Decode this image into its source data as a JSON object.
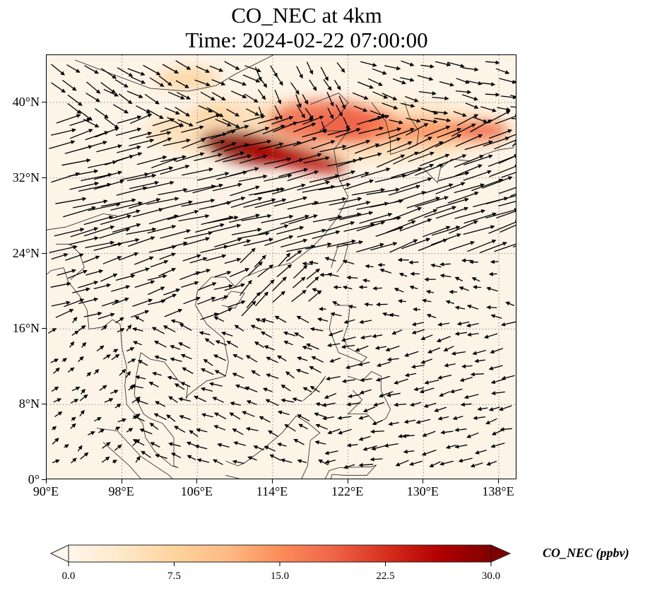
{
  "title": {
    "line1": "CO_NEC at 4km",
    "line2": "Time: 2024-02-22 07:00:00"
  },
  "map": {
    "projection": "PlateCarree",
    "lon_range": [
      90,
      140
    ],
    "lat_range": [
      0,
      45
    ],
    "gridlines": "dotted",
    "coastlines": true,
    "background_color": "#fdf4e8",
    "lat_ticks": [
      {
        "value": 40,
        "label": "40°N"
      },
      {
        "value": 32,
        "label": "32°N"
      },
      {
        "value": 24,
        "label": "24°N"
      },
      {
        "value": 16,
        "label": "16°N"
      },
      {
        "value": 8,
        "label": "8°N"
      },
      {
        "value": 0,
        "label": "0°"
      }
    ],
    "lon_ticks": [
      {
        "value": 90,
        "label": "90°E"
      },
      {
        "value": 98,
        "label": "98°E"
      },
      {
        "value": 106,
        "label": "106°E"
      },
      {
        "value": 114,
        "label": "114°E"
      },
      {
        "value": 122,
        "label": "122°E"
      },
      {
        "value": 130,
        "label": "130°E"
      },
      {
        "value": 138,
        "label": "138°E"
      }
    ],
    "plumes": [
      {
        "lon": 111.5,
        "lat": 35.2,
        "value": 30
      },
      {
        "lon": 116.5,
        "lat": 34.2,
        "value": 28
      },
      {
        "lon": 119.5,
        "lat": 38.0,
        "value": 18
      },
      {
        "lon": 123.0,
        "lat": 37.5,
        "value": 17
      },
      {
        "lon": 130.0,
        "lat": 37.0,
        "value": 16
      },
      {
        "lon": 136.0,
        "lat": 37.0,
        "value": 18
      },
      {
        "lon": 105.0,
        "lat": 42.5,
        "value": 9
      },
      {
        "lon": 108.0,
        "lat": 39.0,
        "value": 6
      }
    ]
  },
  "colorbar": {
    "label": "CO_NEC (ppbv)",
    "min": 0.0,
    "max": 30.0,
    "extend": "both",
    "colormap": "OrRd",
    "colors": [
      "#fff7ec",
      "#fee8c8",
      "#fdd49e",
      "#fdbb84",
      "#fc8d59",
      "#ef6548",
      "#d7301f",
      "#b30000",
      "#7f0000"
    ],
    "ticks": [
      "0.0",
      "7.5",
      "15.0",
      "22.5",
      "30.0"
    ],
    "tick_values": [
      0.0,
      7.5,
      15.0,
      22.5,
      30.0
    ]
  }
}
